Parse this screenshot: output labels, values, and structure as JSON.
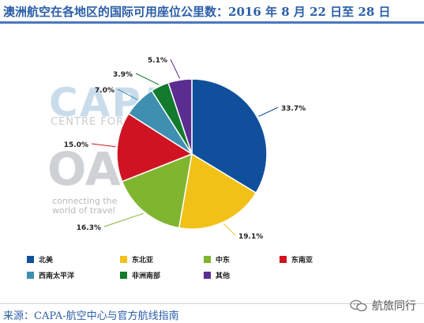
{
  "title": "澳洲航空在各地区的国际可用座位公里数：2016 年 8 月 22 日至 28 日",
  "watermark": {
    "capa": "CAPA",
    "centre": "CENTRE FOR",
    "oag": "OAG",
    "tagline_1": "connecting the",
    "tagline_2": "world of travel"
  },
  "source": "来源：CAPA-航空中心与官方航线指南",
  "brand": "航旅同行",
  "chart_data": {
    "type": "pie",
    "title": "澳洲航空在各地区的国际可用座位公里数：2016 年 8 月 22 日至 28 日",
    "start": "12 o'clock",
    "direction": "clockwise",
    "legend_position": "bottom",
    "slices": [
      {
        "name": "北美",
        "value": 33.7,
        "label": "33.7%",
        "color": "#0f4f9c"
      },
      {
        "name": "东北亚",
        "value": 19.1,
        "label": "19.1%",
        "color": "#f1c118"
      },
      {
        "name": "中东",
        "value": 16.3,
        "label": "16.3%",
        "color": "#80b530"
      },
      {
        "name": "东南亚",
        "value": 15.0,
        "label": "15.0%",
        "color": "#cf1322"
      },
      {
        "name": "西南太平洋",
        "value": 7.0,
        "label": "7.0%",
        "color": "#3f8fb0"
      },
      {
        "name": "非洲南部",
        "value": 3.9,
        "label": "3.9%",
        "color": "#127a2c"
      },
      {
        "name": "其他",
        "value": 5.1,
        "label": "5.1%",
        "color": "#5b2d91"
      }
    ]
  }
}
